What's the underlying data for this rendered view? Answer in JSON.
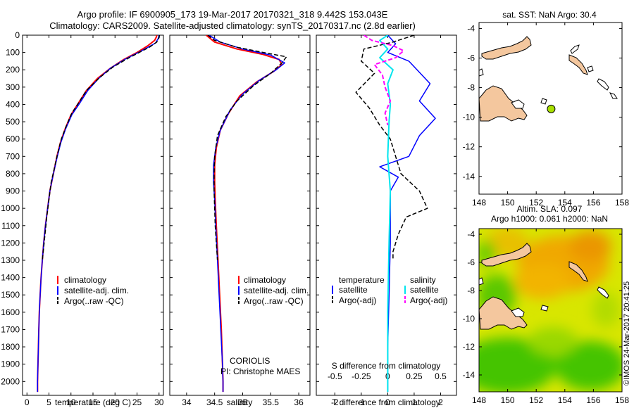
{
  "header": {
    "line1": "Argo profile: IF 6900905_173 19-Mar-2017 20170321_318 9.442S 153.043E",
    "line2": "Climatology: CARS2009. Satellite-adjusted climatology: synTS_20170317.nc (2.8d earlier)"
  },
  "colors": {
    "climatology": "#ff0000",
    "satellite": "#0000ff",
    "argo": "#000000",
    "temp_diff_sat": "#00e5ee",
    "salt_argo": "#ff00ff",
    "land": "#f4c79e",
    "marker": "#a8e000"
  },
  "chart_data": [
    {
      "type": "line",
      "panel": "temperature",
      "xlabel": "temperature (deg C)",
      "ylabel": "",
      "xlim": [
        -1,
        31
      ],
      "ylim": [
        2080,
        0
      ],
      "y_inverted": true,
      "x_ticks": [
        0,
        5,
        10,
        15,
        20,
        25,
        30
      ],
      "y_ticks": [
        0,
        100,
        200,
        300,
        400,
        500,
        600,
        700,
        800,
        900,
        1000,
        1100,
        1200,
        1300,
        1400,
        1500,
        1600,
        1700,
        1800,
        1900,
        2000
      ],
      "legend": {
        "placement": "lower-middle",
        "entries": [
          "climatology",
          "satellite-adj. clim.",
          "Argo(..raw -QC)"
        ]
      },
      "series": [
        {
          "name": "climatology",
          "color": "#ff0000",
          "width": 2,
          "dash": "",
          "points": [
            [
              29.5,
              0
            ],
            [
              29.4,
              10
            ],
            [
              29.0,
              30
            ],
            [
              27.5,
              60
            ],
            [
              25.0,
              100
            ],
            [
              22.0,
              140
            ],
            [
              19.0,
              190
            ],
            [
              16.0,
              250
            ],
            [
              13.5,
              320
            ],
            [
              11.5,
              400
            ],
            [
              10.0,
              460
            ],
            [
              8.7,
              540
            ],
            [
              7.6,
              620
            ],
            [
              6.8,
              700
            ],
            [
              6.0,
              800
            ],
            [
              5.2,
              900
            ],
            [
              4.7,
              1000
            ],
            [
              4.2,
              1100
            ],
            [
              3.8,
              1200
            ],
            [
              3.5,
              1300
            ],
            [
              3.2,
              1400
            ],
            [
              3.0,
              1500
            ],
            [
              2.8,
              1600
            ],
            [
              2.7,
              1700
            ],
            [
              2.6,
              1800
            ],
            [
              2.5,
              1900
            ],
            [
              2.4,
              2000
            ],
            [
              2.4,
              2060
            ]
          ]
        },
        {
          "name": "satellite-adj. clim.",
          "color": "#0000ff",
          "width": 1.5,
          "dash": "",
          "points": [
            [
              30.0,
              0
            ],
            [
              29.8,
              20
            ],
            [
              29.2,
              45
            ],
            [
              27.5,
              70
            ],
            [
              25.3,
              100
            ],
            [
              22.2,
              140
            ],
            [
              19.0,
              190
            ],
            [
              16.3,
              250
            ],
            [
              13.8,
              320
            ],
            [
              11.8,
              400
            ],
            [
              10.2,
              460
            ],
            [
              8.8,
              540
            ],
            [
              7.7,
              620
            ],
            [
              6.9,
              700
            ],
            [
              6.0,
              800
            ],
            [
              5.2,
              900
            ],
            [
              4.7,
              1000
            ],
            [
              4.2,
              1100
            ],
            [
              3.8,
              1200
            ],
            [
              3.5,
              1300
            ],
            [
              3.2,
              1400
            ],
            [
              3.0,
              1500
            ],
            [
              2.8,
              1600
            ],
            [
              2.7,
              1700
            ],
            [
              2.6,
              1800
            ],
            [
              2.5,
              1900
            ],
            [
              2.4,
              2000
            ],
            [
              2.4,
              2060
            ]
          ]
        },
        {
          "name": "Argo(..raw -QC)",
          "color": "#000000",
          "width": 1.5,
          "dash": "6,3",
          "points": [
            [
              30.1,
              0
            ],
            [
              30.0,
              15
            ],
            [
              29.5,
              40
            ],
            [
              27.8,
              70
            ],
            [
              25.5,
              100
            ],
            [
              22.5,
              140
            ],
            [
              19.5,
              185
            ],
            [
              16.5,
              245
            ],
            [
              13.5,
              320
            ],
            [
              11.5,
              400
            ],
            [
              10.2,
              450
            ],
            [
              9.0,
              520
            ],
            [
              7.8,
              600
            ],
            [
              7.0,
              680
            ],
            [
              6.3,
              760
            ],
            [
              5.5,
              850
            ],
            [
              5.0,
              950
            ],
            [
              4.5,
              1050
            ],
            [
              4.1,
              1150
            ],
            [
              3.7,
              1250
            ],
            [
              3.5,
              1300
            ]
          ]
        }
      ]
    },
    {
      "type": "line",
      "panel": "salinity",
      "xlabel": "salinity",
      "xlim": [
        33.7,
        36.2
      ],
      "ylim": [
        2080,
        0
      ],
      "y_inverted": true,
      "x_ticks": [
        34,
        34.5,
        35,
        35.5,
        36
      ],
      "legend": {
        "placement": "lower-middle",
        "entries": [
          "climatology",
          "satellite-adj. clim.",
          "Argo(..raw -QC)"
        ]
      },
      "annotation": [
        "CORIOLIS",
        "PI: Christophe MAES"
      ],
      "series": [
        {
          "name": "climatology",
          "color": "#ff0000",
          "width": 2,
          "dash": "",
          "points": [
            [
              34.35,
              0
            ],
            [
              34.5,
              40
            ],
            [
              34.9,
              80
            ],
            [
              35.35,
              110
            ],
            [
              35.65,
              140
            ],
            [
              35.7,
              170
            ],
            [
              35.55,
              210
            ],
            [
              35.25,
              270
            ],
            [
              34.95,
              350
            ],
            [
              34.75,
              450
            ],
            [
              34.6,
              550
            ],
            [
              34.53,
              650
            ],
            [
              34.5,
              750
            ],
            [
              34.5,
              850
            ],
            [
              34.51,
              950
            ],
            [
              34.53,
              1100
            ],
            [
              34.56,
              1300
            ],
            [
              34.59,
              1500
            ],
            [
              34.62,
              1700
            ],
            [
              34.64,
              1900
            ],
            [
              34.65,
              2000
            ],
            [
              34.65,
              2060
            ]
          ]
        },
        {
          "name": "satellite-adj. clim.",
          "color": "#0000ff",
          "width": 1.5,
          "dash": "",
          "points": [
            [
              34.4,
              0
            ],
            [
              34.6,
              40
            ],
            [
              35.0,
              80
            ],
            [
              35.5,
              115
            ],
            [
              35.75,
              160
            ],
            [
              35.6,
              200
            ],
            [
              35.3,
              260
            ],
            [
              35.0,
              340
            ],
            [
              34.78,
              430
            ],
            [
              34.6,
              550
            ],
            [
              34.52,
              650
            ],
            [
              34.48,
              750
            ],
            [
              34.48,
              850
            ],
            [
              34.5,
              950
            ],
            [
              34.52,
              1100
            ],
            [
              34.55,
              1300
            ],
            [
              34.58,
              1500
            ],
            [
              34.61,
              1700
            ],
            [
              34.64,
              1900
            ],
            [
              34.65,
              2000
            ],
            [
              34.65,
              2060
            ]
          ]
        },
        {
          "name": "Argo(..raw -QC)",
          "color": "#000000",
          "width": 1.5,
          "dash": "6,3",
          "points": [
            [
              34.38,
              0
            ],
            [
              34.5,
              30
            ],
            [
              34.9,
              70
            ],
            [
              35.45,
              105
            ],
            [
              35.78,
              125
            ],
            [
              35.7,
              160
            ],
            [
              35.5,
              220
            ],
            [
              35.2,
              290
            ],
            [
              34.9,
              380
            ],
            [
              34.7,
              470
            ],
            [
              34.55,
              580
            ],
            [
              34.5,
              700
            ],
            [
              34.49,
              800
            ],
            [
              34.49,
              900
            ],
            [
              34.5,
              1000
            ],
            [
              34.51,
              1100
            ],
            [
              34.53,
              1200
            ],
            [
              34.55,
              1300
            ]
          ]
        }
      ]
    },
    {
      "type": "line",
      "panel": "difference",
      "xlabel": "T difference from climatology",
      "xlabel_top": "S difference from climatology",
      "xlim": [
        -2.7,
        2.6
      ],
      "ylim": [
        2080,
        0
      ],
      "y_inverted": true,
      "x_ticks": [
        -2,
        -1,
        0,
        1,
        2
      ],
      "x_ticks_top_labels": [
        "-0.5",
        "-0.25",
        "0",
        "0.25",
        "0.5"
      ],
      "x_ticks_top_pos": [
        -2,
        -1,
        0,
        1,
        2
      ],
      "legend": {
        "placement": "lower-middle",
        "temperature": [
          "temperature",
          "satellite",
          "Argo(-adj)"
        ],
        "salinity": [
          "salinity",
          "satellite",
          "Argo(-adj)"
        ]
      },
      "series": [
        {
          "name": "temperature satellite",
          "color": "#0000ff",
          "width": 1.5,
          "dash": "",
          "points": [
            [
              0.0,
              0
            ],
            [
              0.3,
              50
            ],
            [
              0.0,
              100
            ],
            [
              0.8,
              150
            ],
            [
              1.6,
              280
            ],
            [
              1.2,
              380
            ],
            [
              1.8,
              480
            ],
            [
              1.2,
              580
            ],
            [
              0.8,
              700
            ],
            [
              -0.3,
              760
            ],
            [
              0.4,
              820
            ],
            [
              0.1,
              900
            ],
            [
              0.1,
              1200
            ],
            [
              0.05,
              1500
            ],
            [
              0.0,
              1800
            ],
            [
              0.0,
              2060
            ]
          ]
        },
        {
          "name": "temperature Argo(-adj)",
          "color": "#000000",
          "width": 1.5,
          "dash": "6,3",
          "points": [
            [
              1.0,
              0
            ],
            [
              0.2,
              40
            ],
            [
              -0.9,
              80
            ],
            [
              -1.0,
              150
            ],
            [
              -0.5,
              220
            ],
            [
              -1.2,
              330
            ],
            [
              -0.7,
              420
            ],
            [
              -0.3,
              520
            ],
            [
              0.1,
              600
            ],
            [
              0.3,
              700
            ],
            [
              0.5,
              800
            ],
            [
              1.2,
              900
            ],
            [
              1.5,
              1000
            ],
            [
              0.7,
              1050
            ],
            [
              0.4,
              1150
            ],
            [
              0.2,
              1250
            ],
            [
              0.2,
              1300
            ]
          ]
        },
        {
          "name": "salinity satellite",
          "color": "#00e5ee",
          "width": 2,
          "dash": "",
          "points": [
            [
              0.0,
              0
            ],
            [
              -0.3,
              30
            ],
            [
              0.0,
              80
            ],
            [
              -0.3,
              130
            ],
            [
              0.2,
              200
            ],
            [
              0.0,
              280
            ],
            [
              0.1,
              400
            ],
            [
              0.05,
              500
            ],
            [
              0.0,
              700
            ],
            [
              0.1,
              900
            ],
            [
              0.05,
              1200
            ],
            [
              0.0,
              1600
            ],
            [
              0.0,
              2060
            ]
          ]
        },
        {
          "name": "salinity Argo(-adj)",
          "color": "#ff00ff",
          "width": 2,
          "dash": "6,3",
          "points": [
            [
              -0.9,
              0
            ],
            [
              -0.6,
              30
            ],
            [
              0.2,
              60
            ],
            [
              0.6,
              90
            ],
            [
              0.3,
              130
            ],
            [
              -0.5,
              170
            ],
            [
              -0.2,
              230
            ],
            [
              -0.1,
              300
            ],
            [
              0.1,
              380
            ],
            [
              -0.1,
              450
            ],
            [
              0.0,
              520
            ]
          ]
        }
      ]
    },
    {
      "type": "map",
      "panel": "sst",
      "title": "sat. SST: NaN Argo: 30.4",
      "x_ticks": [
        148,
        150,
        152,
        154,
        156,
        158
      ],
      "y_ticks": [
        -4,
        -6,
        -8,
        -10,
        -12,
        -14
      ],
      "xlim": [
        148,
        158
      ],
      "ylim": [
        -15.2,
        -3.6
      ],
      "marker": [
        153.043,
        -9.442
      ]
    },
    {
      "type": "map",
      "panel": "sla",
      "title_lines": [
        "Altim. SLA: 0.097",
        "Argo h1000: 0.061 h2000: NaN"
      ],
      "x_ticks": [
        148,
        150,
        152,
        154,
        156,
        158
      ],
      "y_ticks": [
        -4,
        -6,
        -8,
        -10,
        -12,
        -14
      ],
      "xlim": [
        148,
        158
      ],
      "ylim": [
        -15.2,
        -3.6
      ],
      "side_label": "©IMOS 24-Mar-2017 20:41:25"
    }
  ]
}
